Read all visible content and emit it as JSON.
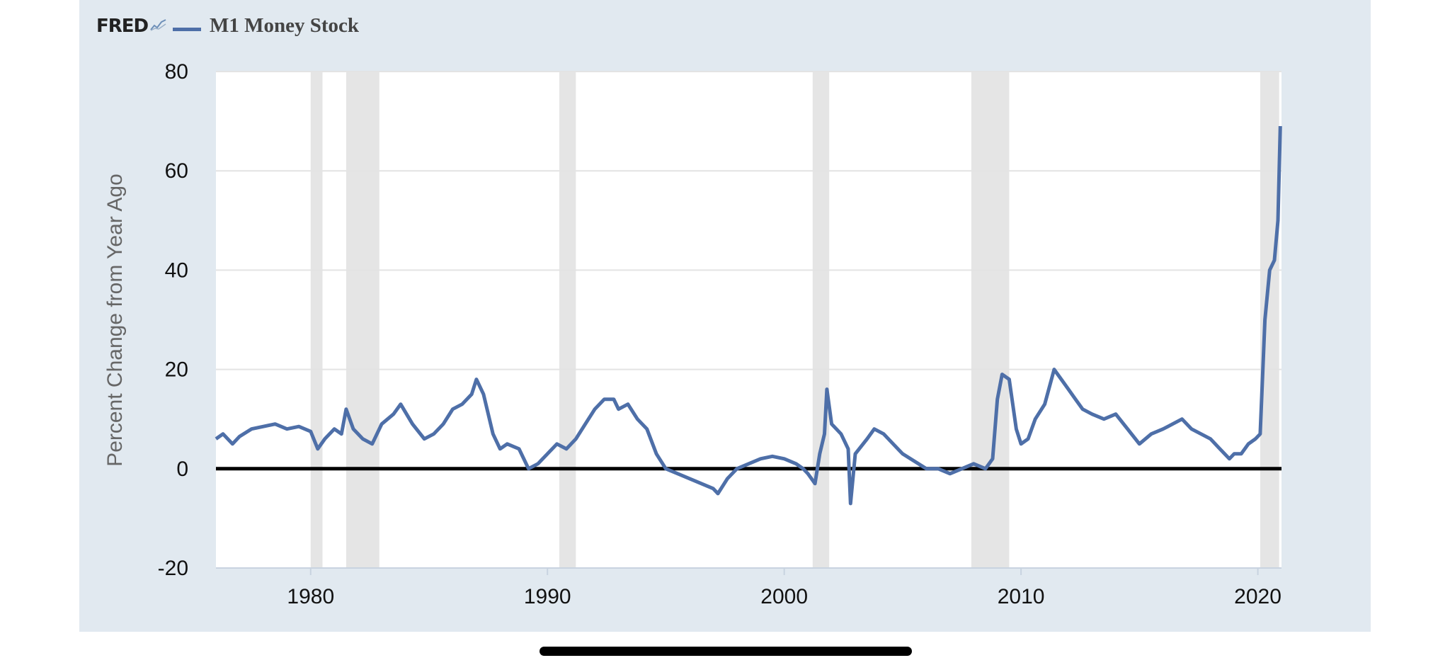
{
  "header": {
    "brand": "FRED",
    "brand_icon": "fred-chart-icon"
  },
  "colors": {
    "background": "#e1e9f0",
    "plot": "#ffffff",
    "series": "#4e6fa8",
    "recession": "#e5e5e5",
    "zero_line": "#000000",
    "grid": "#e3e3e3"
  },
  "chart_data": {
    "type": "line",
    "title": "",
    "xlabel": "",
    "ylabel": "Percent Change from Year Ago",
    "xlim": [
      1976.0,
      2021.0
    ],
    "ylim": [
      -20,
      80
    ],
    "yticks": [
      "80",
      "60",
      "40",
      "20",
      "0",
      "-20"
    ],
    "xticks": [
      "1980",
      "1990",
      "2000",
      "2010",
      "2020"
    ],
    "grid": true,
    "legend": "top-left",
    "reference_line": 0,
    "recessions": [
      [
        1980.0,
        1980.5
      ],
      [
        1981.5,
        1982.9
      ],
      [
        1990.5,
        1991.2
      ],
      [
        2001.2,
        2001.9
      ],
      [
        2007.9,
        2009.5
      ],
      [
        2020.1,
        2020.9
      ]
    ],
    "series": [
      {
        "name": "M1 Money Stock",
        "x": [
          1976.0,
          1976.3,
          1976.7,
          1977.0,
          1977.5,
          1978.0,
          1978.5,
          1979.0,
          1979.5,
          1980.0,
          1980.3,
          1980.6,
          1981.0,
          1981.3,
          1981.5,
          1981.8,
          1982.2,
          1982.6,
          1983.0,
          1983.5,
          1983.8,
          1984.3,
          1984.8,
          1985.2,
          1985.6,
          1986.0,
          1986.4,
          1986.8,
          1987.0,
          1987.3,
          1987.7,
          1988.0,
          1988.3,
          1988.8,
          1989.2,
          1989.6,
          1990.0,
          1990.4,
          1990.8,
          1991.2,
          1991.6,
          1992.0,
          1992.4,
          1992.8,
          1993.0,
          1993.4,
          1993.8,
          1994.2,
          1994.6,
          1995.0,
          1995.5,
          1996.0,
          1996.5,
          1997.0,
          1997.2,
          1997.6,
          1998.0,
          1998.5,
          1999.0,
          1999.5,
          2000.0,
          2000.5,
          2000.8,
          2001.0,
          2001.3,
          2001.5,
          2001.7,
          2001.8,
          2002.0,
          2002.4,
          2002.7,
          2002.8,
          2003.0,
          2003.5,
          2003.8,
          2004.2,
          2004.6,
          2005.0,
          2005.5,
          2006.0,
          2006.5,
          2007.0,
          2007.5,
          2008.0,
          2008.5,
          2008.8,
          2009.0,
          2009.2,
          2009.5,
          2009.8,
          2010.0,
          2010.3,
          2010.6,
          2011.0,
          2011.4,
          2011.7,
          2012.0,
          2012.3,
          2012.6,
          2013.0,
          2013.5,
          2014.0,
          2014.5,
          2015.0,
          2015.5,
          2016.0,
          2016.4,
          2016.8,
          2017.2,
          2017.6,
          2018.0,
          2018.4,
          2018.8,
          2019.0,
          2019.3,
          2019.6,
          2019.9,
          2020.1,
          2020.3,
          2020.5,
          2020.7,
          2020.85,
          2020.95
        ],
        "values": [
          6,
          7,
          5,
          6.5,
          8,
          8.5,
          9,
          8,
          8.5,
          7.5,
          4,
          6,
          8,
          7,
          12,
          8,
          6,
          5,
          9,
          11,
          13,
          9,
          6,
          7,
          9,
          12,
          13,
          15,
          18,
          15,
          7,
          4,
          5,
          4,
          0,
          1,
          3,
          5,
          4,
          6,
          9,
          12,
          14,
          14,
          12,
          13,
          10,
          8,
          3,
          0,
          -1,
          -2,
          -3,
          -4,
          -5,
          -2,
          0,
          1,
          2,
          2.5,
          2,
          1,
          0,
          -1,
          -3,
          3,
          7,
          16,
          9,
          7,
          4,
          -7,
          3,
          6,
          8,
          7,
          5,
          3,
          1.5,
          0,
          0,
          -1,
          0,
          1,
          0,
          2,
          14,
          19,
          18,
          8,
          5,
          6,
          10,
          13,
          20,
          18,
          16,
          14,
          12,
          11,
          10,
          11,
          8,
          5,
          7,
          8,
          9,
          10,
          8,
          7,
          6,
          4,
          2,
          3,
          3,
          5,
          6,
          7,
          30,
          40,
          42,
          50,
          69
        ]
      }
    ]
  }
}
